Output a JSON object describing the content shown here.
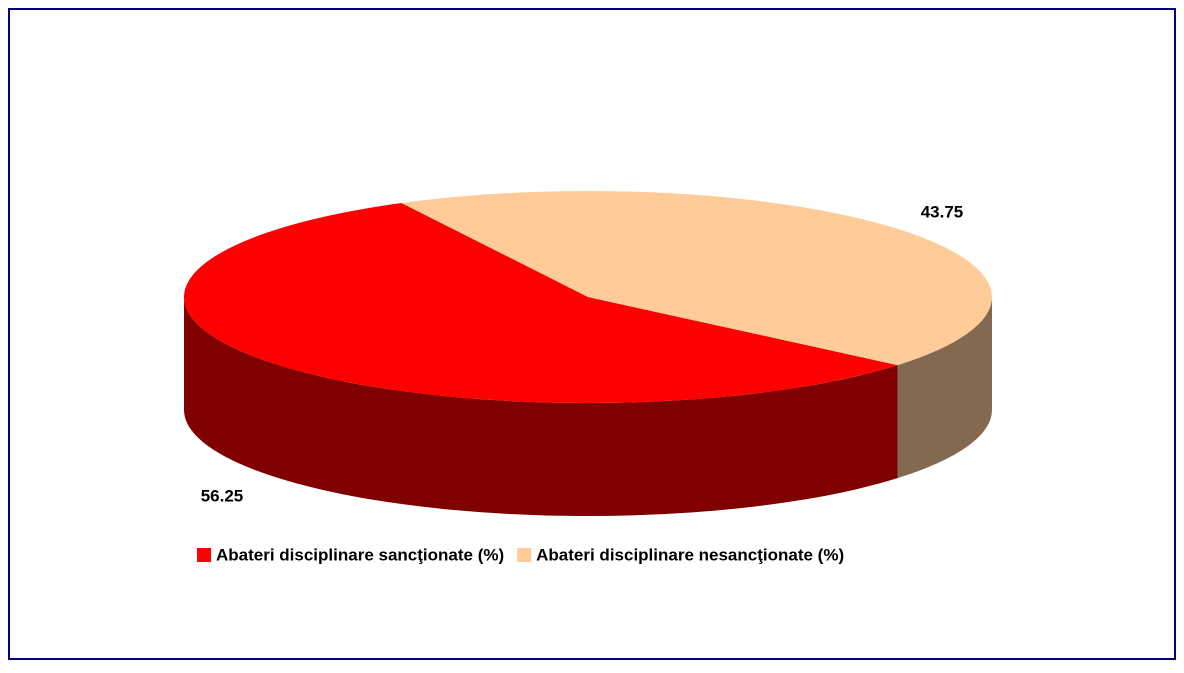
{
  "chart_data": {
    "type": "pie3d",
    "categories": [
      "Abateri disciplinare sancţionate (%)",
      "Abateri disciplinare nesancţionate (%)"
    ],
    "values": [
      56.25,
      43.75
    ],
    "colors": [
      "#ff0000",
      "#ffcc99"
    ],
    "side_colors": [
      "#800000",
      "#836950"
    ],
    "legend": "bottom"
  }
}
